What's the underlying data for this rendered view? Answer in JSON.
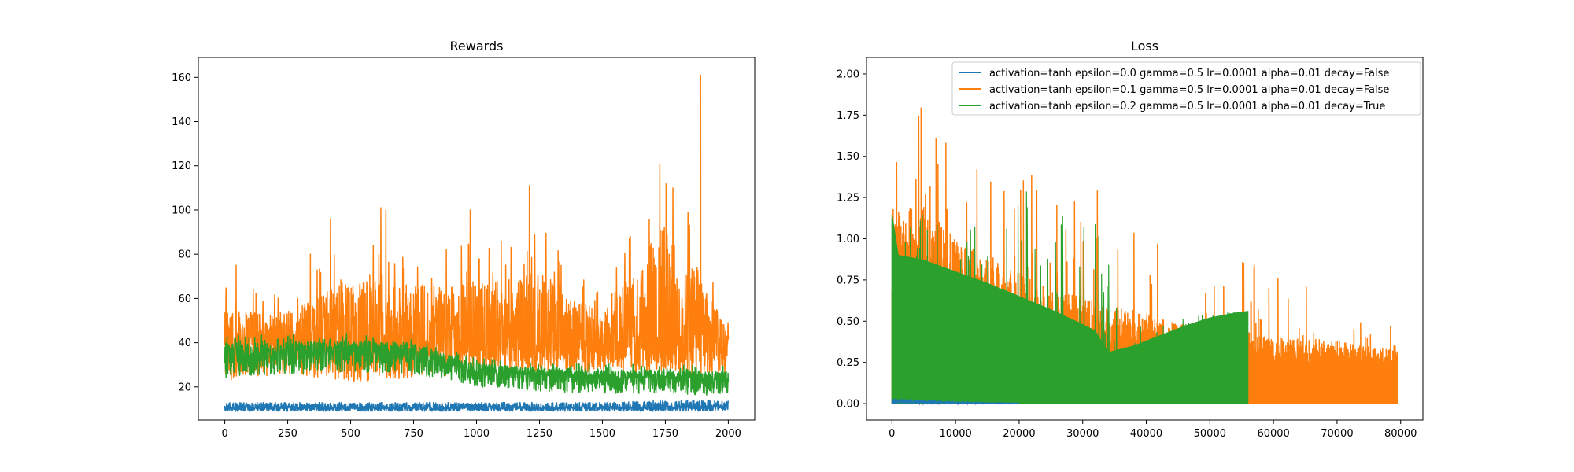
{
  "chart_data": [
    {
      "type": "line",
      "title": "Rewards",
      "xlabel": "",
      "ylabel": "",
      "xlim": [
        -105,
        2105
      ],
      "ylim": [
        5,
        169
      ],
      "xticks": [
        0,
        250,
        500,
        750,
        1000,
        1250,
        1500,
        1750,
        2000
      ],
      "yticks": [
        20,
        40,
        60,
        80,
        100,
        120,
        140,
        160
      ],
      "grid": false,
      "series": [
        {
          "name": "activation=tanh epsilon=0.0 gamma=0.5 lr=0.0001 alpha=0.01 decay=False",
          "color": "#1f77b4",
          "x": [
            0,
            250,
            500,
            750,
            1000,
            1250,
            1500,
            1750,
            2000
          ],
          "y_min": [
            9,
            9,
            9,
            9,
            9,
            9,
            9,
            9,
            9
          ],
          "y_max": [
            13,
            13,
            13,
            13,
            13,
            13,
            13,
            14,
            14
          ],
          "y_mean": [
            11,
            11,
            11,
            11,
            11,
            11,
            11,
            11.5,
            11.5
          ]
        },
        {
          "name": "activation=tanh epsilon=0.1 gamma=0.5 lr=0.0001 alpha=0.01 decay=False",
          "color": "#ff7f0e",
          "x": [
            0,
            250,
            500,
            750,
            1000,
            1250,
            1500,
            1750,
            2000
          ],
          "y_min": [
            22,
            26,
            22,
            24,
            26,
            27,
            26,
            26,
            25
          ],
          "y_max": [
            75,
            70,
            101,
            96,
            100,
            111,
            70,
            161,
            57
          ],
          "y_mean": [
            38,
            40,
            42,
            42,
            40,
            40,
            38,
            40,
            38
          ]
        },
        {
          "name": "activation=tanh epsilon=0.2 gamma=0.5 lr=0.0001 alpha=0.01 decay=True",
          "color": "#2ca02c",
          "x": [
            0,
            250,
            500,
            750,
            1000,
            1250,
            1500,
            1750,
            2000
          ],
          "y_min": [
            24,
            26,
            27,
            26,
            20,
            18,
            17,
            17,
            16
          ],
          "y_max": [
            46,
            47,
            47,
            46,
            35,
            33,
            33,
            32,
            32
          ],
          "y_mean": [
            34,
            35,
            36,
            35,
            27,
            25,
            24,
            24,
            23
          ]
        }
      ]
    },
    {
      "type": "line",
      "title": "Loss",
      "xlabel": "",
      "ylabel": "",
      "xlim": [
        -4000,
        83500
      ],
      "ylim": [
        -0.1,
        2.1
      ],
      "xticks": [
        0,
        10000,
        20000,
        30000,
        40000,
        50000,
        60000,
        70000,
        80000
      ],
      "yticks": [
        0.0,
        0.25,
        0.5,
        0.75,
        1.0,
        1.25,
        1.5,
        1.75,
        2.0
      ],
      "ytick_labels": [
        "0.00",
        "0.25",
        "0.50",
        "0.75",
        "1.00",
        "1.25",
        "1.50",
        "1.75",
        "2.00"
      ],
      "grid": false,
      "legend": "top-right",
      "series": [
        {
          "name": "activation=tanh epsilon=0.0 gamma=0.5 lr=0.0001 alpha=0.01 decay=False",
          "color": "#1f77b4",
          "x": [
            0,
            5000,
            10000,
            15000,
            20000
          ],
          "y_max": [
            0.03,
            0.02,
            0.01,
            0.005,
            0.003
          ]
        },
        {
          "name": "activation=tanh epsilon=0.1 gamma=0.5 lr=0.0001 alpha=0.01 decay=False",
          "color": "#ff7f0e",
          "x": [
            0,
            5000,
            10000,
            15000,
            20000,
            25000,
            30000,
            35000,
            40000,
            45000,
            50000,
            55000,
            60000,
            65000,
            70000,
            75000,
            79500
          ],
          "y_max": [
            1.8,
            1.93,
            1.7,
            1.6,
            1.5,
            1.3,
            1.43,
            1.2,
            1.1,
            1.0,
            0.95,
            0.9,
            0.8,
            0.82,
            0.7,
            0.55,
            0.5
          ],
          "y_typical": [
            1.2,
            1.2,
            1.0,
            0.9,
            0.8,
            0.7,
            0.65,
            0.6,
            0.55,
            0.5,
            0.48,
            0.45,
            0.4,
            0.4,
            0.38,
            0.35,
            0.33
          ]
        },
        {
          "name": "activation=tanh epsilon=0.2 gamma=0.5 lr=0.0001 alpha=0.01 decay=True",
          "color": "#2ca02c",
          "x": [
            0,
            1000,
            5000,
            10000,
            15000,
            20000,
            25000,
            30000,
            32000,
            34000,
            38000,
            42000,
            46000,
            50000,
            54000,
            56000
          ],
          "y_band_top": [
            1.15,
            0.9,
            0.87,
            0.8,
            0.73,
            0.65,
            0.57,
            0.48,
            0.44,
            0.31,
            0.35,
            0.41,
            0.47,
            0.52,
            0.55,
            0.56
          ],
          "y_max": [
            1.15,
            1.1,
            1.15,
            1.1,
            1.2,
            1.3,
            1.25,
            1.3,
            1.37,
            0.9,
            0.5,
            0.5,
            0.52,
            0.55,
            0.57,
            0.57
          ]
        }
      ]
    }
  ]
}
